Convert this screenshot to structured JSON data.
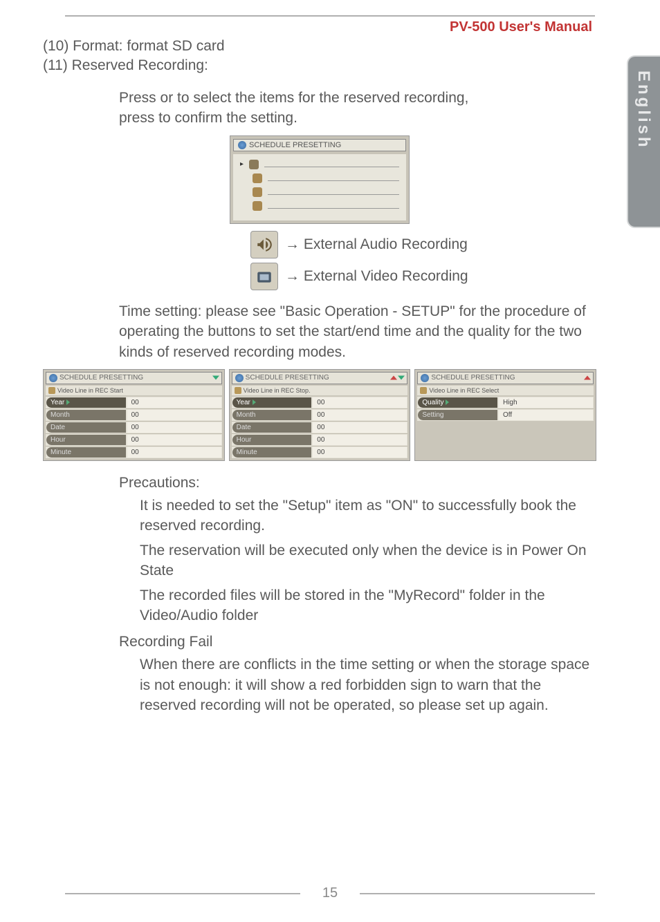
{
  "header": {
    "title": "PV-500 User's Manual",
    "title_color": "#c23434"
  },
  "sidetab": {
    "text": "English",
    "bg_color": "#8e9396",
    "text_color": "#e8e9ea"
  },
  "item10": "(10) Format: format SD card",
  "item11": "(11) Reserved Recording:",
  "instruction_line1": "Press    or    to select the items for the reserved recording,",
  "instruction_line2": "press      to confirm the setting.",
  "schedule_title": "SCHEDULE PRESETTING",
  "audio_label": "→ External Audio Recording",
  "video_label": "→ External Video Recording",
  "time_setting": "Time setting: please see \"Basic Operation - SETUP\" for the procedure of operating the buttons to set the start/end time and the quality for the two kinds of reserved recording modes.",
  "panels": [
    {
      "header": "SCHEDULE PRESETTING",
      "sub": "Video Line in REC Start",
      "rows": [
        {
          "label": "Year",
          "value": "00",
          "active": true
        },
        {
          "label": "Month",
          "value": "00"
        },
        {
          "label": "Date",
          "value": "00"
        },
        {
          "label": "Hour",
          "value": "00"
        },
        {
          "label": "Minute",
          "value": "00"
        }
      ],
      "corner": "down"
    },
    {
      "header": "SCHEDULE PRESETTING",
      "sub": "Video Line in REC Stop.",
      "rows": [
        {
          "label": "Year",
          "value": "00",
          "active": true
        },
        {
          "label": "Month",
          "value": "00"
        },
        {
          "label": "Date",
          "value": "00"
        },
        {
          "label": "Hour",
          "value": "00"
        },
        {
          "label": "Minute",
          "value": "00"
        }
      ],
      "corner": "updown"
    },
    {
      "header": "SCHEDULE PRESETTING",
      "sub": "Video Line in REC Select",
      "rows": [
        {
          "label": "Quality",
          "value": "High",
          "active": true
        },
        {
          "label": "Setting",
          "value": "Off"
        }
      ],
      "corner": "up"
    }
  ],
  "precautions_title": "Precautions:",
  "precautions": [
    "It is needed to set the \"Setup\" item as \"ON\" to successfully book the reserved recording.",
    "The reservation will be executed only when the device is in Power On State",
    "The recorded files will be stored in the \"MyRecord\" folder in the Video/Audio folder"
  ],
  "fail_title": "Recording Fail",
  "fail_text": "When there are conflicts in the time setting or when the storage space is not enough: it will show a red forbidden sign to warn that the reserved recording will not be operated, so please set up again.",
  "page_number": "15"
}
